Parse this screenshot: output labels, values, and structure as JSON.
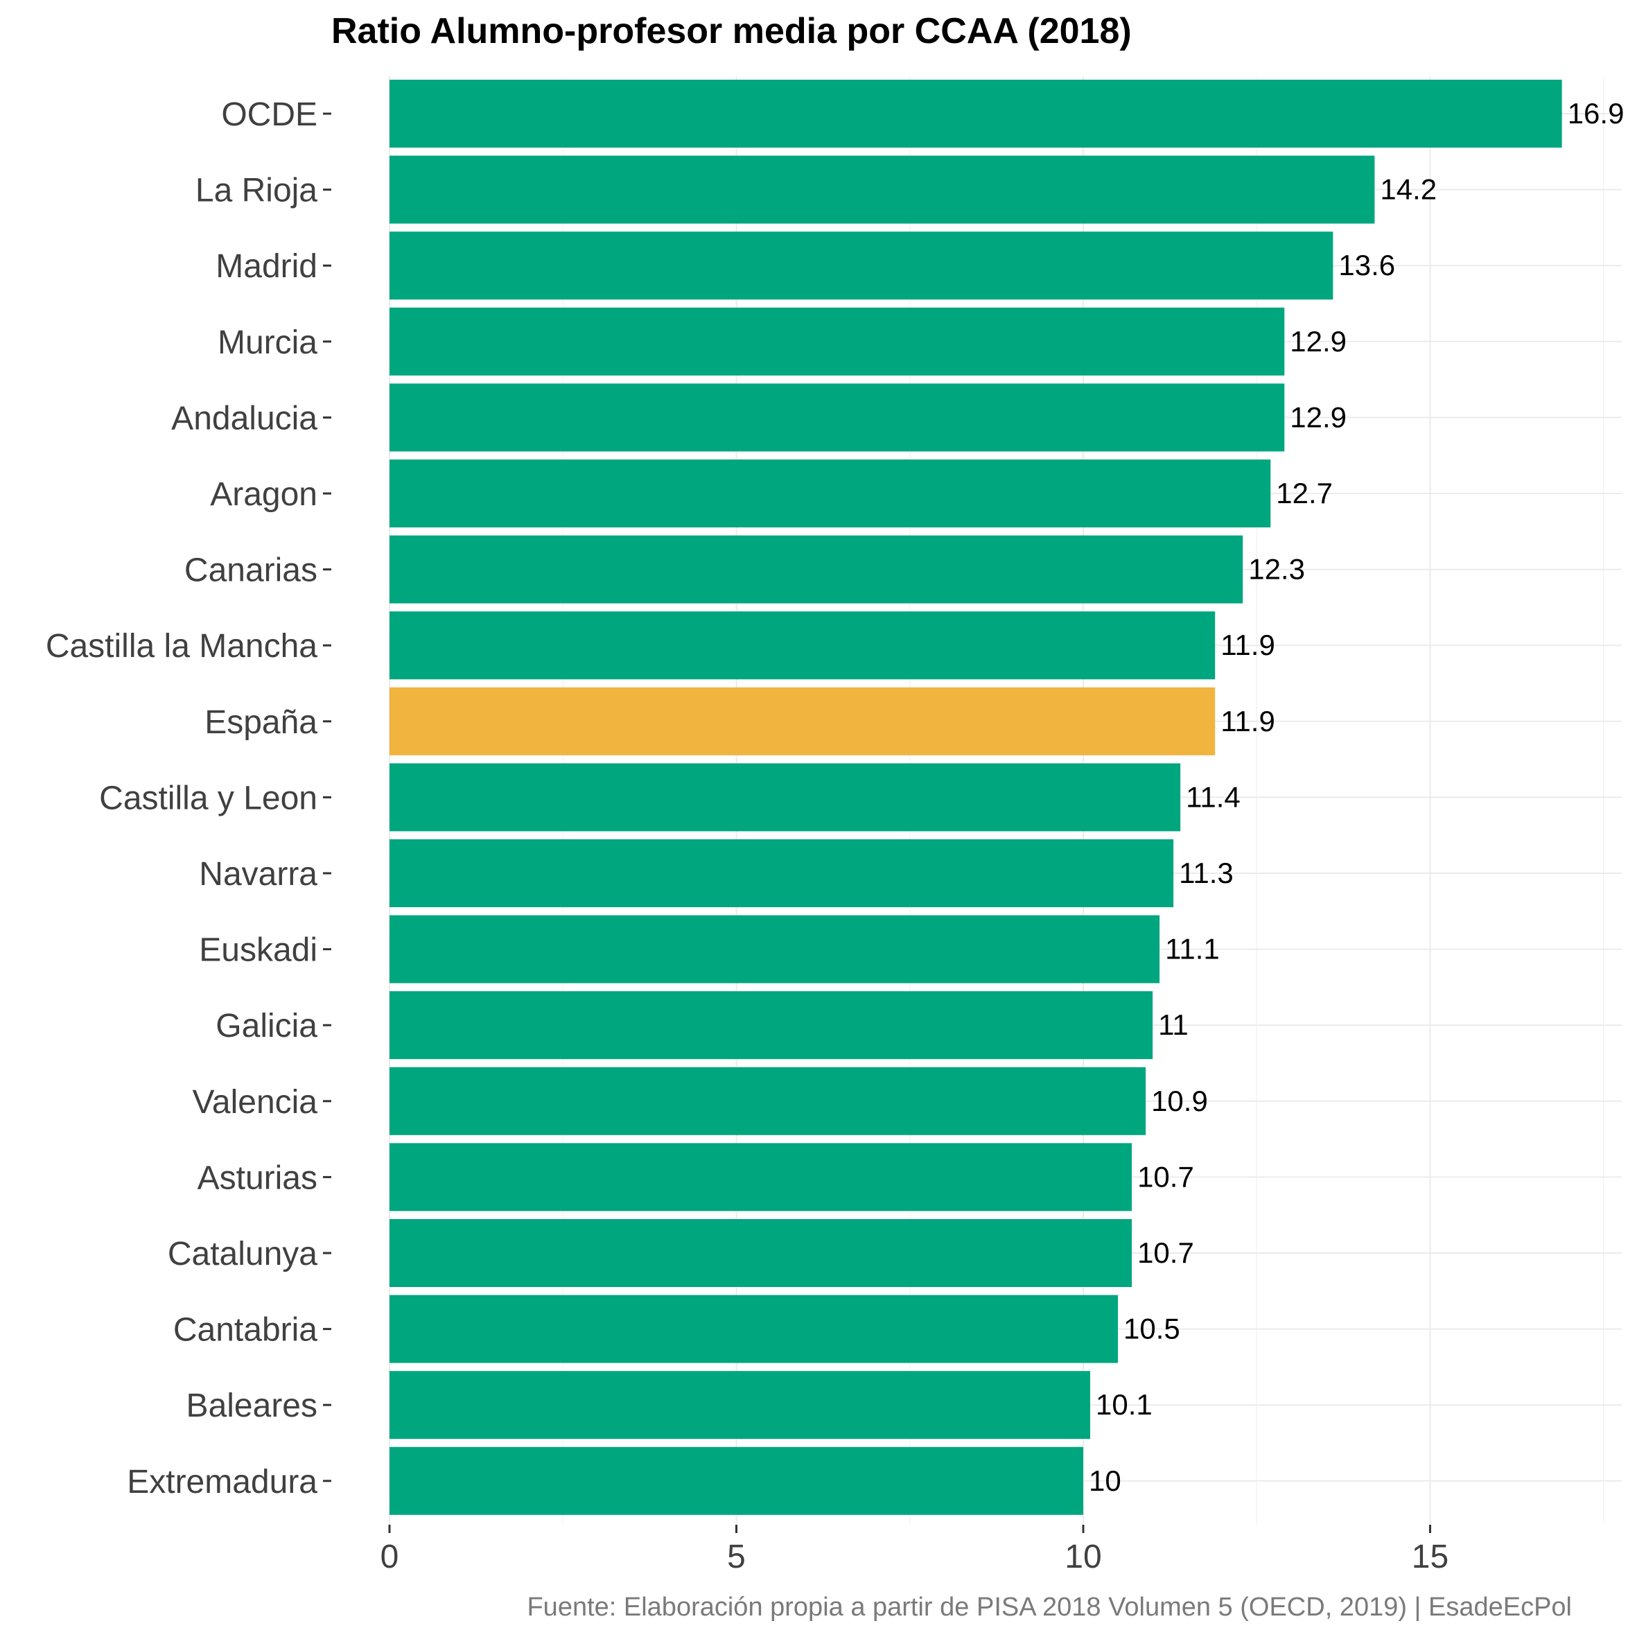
{
  "chart_data": {
    "type": "bar",
    "orientation": "horizontal",
    "title": "Ratio Alumno-profesor media por CCAA (2018)",
    "caption": "Fuente: Elaboración propia a partir de PISA 2018 Volumen 5 (OECD, 2019) | EsadeEcPol",
    "xlabel": "",
    "ylabel": "",
    "xlim": [
      0,
      17.5
    ],
    "xticks": [
      0,
      5,
      10,
      15
    ],
    "xtick_labels": [
      "0",
      "5",
      "10",
      "15"
    ],
    "grid": true,
    "colors": {
      "default": "#00A67E",
      "highlight": "#F0B43F"
    },
    "categories": [
      "OCDE",
      "La Rioja",
      "Madrid",
      "Murcia",
      "Andalucia",
      "Aragon",
      "Canarias",
      "Castilla la Mancha",
      "España",
      "Castilla y Leon",
      "Navarra",
      "Euskadi",
      "Galicia",
      "Valencia",
      "Asturias",
      "Catalunya",
      "Cantabria",
      "Baleares",
      "Extremadura"
    ],
    "values": [
      16.9,
      14.2,
      13.6,
      12.9,
      12.9,
      12.7,
      12.3,
      11.9,
      11.9,
      11.4,
      11.3,
      11.1,
      11,
      10.9,
      10.7,
      10.7,
      10.5,
      10.1,
      10
    ],
    "value_labels": [
      "16.9",
      "14.2",
      "13.6",
      "12.9",
      "12.9",
      "12.7",
      "12.3",
      "11.9",
      "11.9",
      "11.4",
      "11.3",
      "11.1",
      "11",
      "10.9",
      "10.7",
      "10.7",
      "10.5",
      "10.1",
      "10"
    ],
    "highlight": [
      "España"
    ]
  }
}
